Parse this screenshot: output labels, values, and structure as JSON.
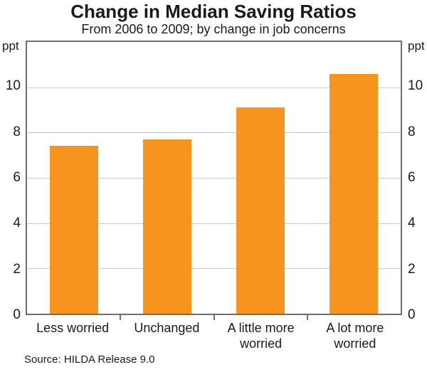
{
  "title": "Change in Median Saving Ratios",
  "subtitle": "From 2006 to 2009; by change in job concerns",
  "source": "Source: HILDA Release 9.0",
  "axis": {
    "unit_left": "ppt",
    "unit_right": "ppt"
  },
  "colors": {
    "bar": "#f7941e",
    "gridline": "#cccccc",
    "frame": "#6e6e6e",
    "text": "#1a1a1a"
  },
  "chart_data": {
    "type": "bar",
    "title": "Change in Median Saving Ratios",
    "subtitle": "From 2006 to 2009; by change in job concerns",
    "categories": [
      "Less worried",
      "Unchanged",
      "A little more worried",
      "A lot more worried"
    ],
    "values": [
      7.4,
      7.7,
      9.1,
      10.6
    ],
    "xlabel": "",
    "ylabel": "ppt",
    "ylim": [
      0,
      12
    ],
    "yticks": [
      0,
      2,
      4,
      6,
      8,
      10
    ],
    "grid": true,
    "legend": false,
    "bar_color": "#f7941e",
    "source": "Source: HILDA Release 9.0"
  }
}
